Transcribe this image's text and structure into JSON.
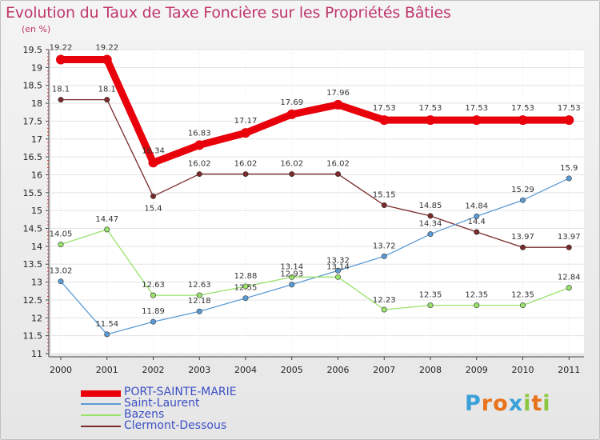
{
  "chart_data": {
    "type": "line",
    "title": "Evolution du Taux de Taxe Foncière sur les Propriétés Bâties",
    "ylabel": "(en %)",
    "xlabel": "",
    "ylim": [
      11,
      19.5
    ],
    "yticks": [
      "11",
      "11.5",
      "12",
      "12.5",
      "13",
      "13.5",
      "14",
      "14.5",
      "15",
      "15.5",
      "16",
      "16.5",
      "17",
      "17.5",
      "18",
      "18.5",
      "19",
      "19.5"
    ],
    "categories": [
      "2000",
      "2001",
      "2002",
      "2003",
      "2004",
      "2005",
      "2006",
      "2007",
      "2008",
      "2009",
      "2010",
      "2011"
    ],
    "series": [
      {
        "name": "PORT-SAINTE-MARIE",
        "color": "#e8000b",
        "values": [
          19.22,
          19.22,
          16.34,
          16.83,
          17.17,
          17.69,
          17.96,
          17.53,
          17.53,
          17.53,
          17.53,
          17.53
        ],
        "labels": [
          "19.22",
          "19.22",
          "16.34",
          "16.83",
          "17.17",
          "17.69",
          "17.96",
          "17.53",
          "17.53",
          "17.53",
          "17.53",
          "17.53"
        ]
      },
      {
        "name": "Saint-Laurent",
        "color": "#5b9bd5",
        "values": [
          13.02,
          11.54,
          11.89,
          12.18,
          12.55,
          12.93,
          13.32,
          13.72,
          14.34,
          14.84,
          15.29,
          15.9
        ],
        "labels": [
          "13.02",
          "11.54",
          "11.89",
          "12.18",
          "12.55",
          "12.93",
          "13.32",
          "13.72",
          "14.34",
          "14.84",
          "15.29",
          "15.9"
        ]
      },
      {
        "name": "Bazens",
        "color": "#99e26b",
        "values": [
          14.05,
          14.47,
          12.63,
          12.63,
          12.88,
          13.14,
          13.14,
          12.23,
          12.35,
          12.35,
          12.35,
          12.84
        ],
        "labels": [
          "14.05",
          "14.47",
          "12.63",
          "12.63",
          "12.88",
          "13.14",
          "13.14",
          "12.23",
          "12.35",
          "12.35",
          "12.35",
          "12.84"
        ]
      },
      {
        "name": "Clermont-Dessous",
        "color": "#7a2a2a",
        "values": [
          18.1,
          18.1,
          15.4,
          16.02,
          16.02,
          16.02,
          16.02,
          15.15,
          14.85,
          14.4,
          13.97,
          13.97
        ],
        "labels": [
          "18.1",
          "18.1",
          "15.4",
          "16.02",
          "16.02",
          "16.02",
          "16.02",
          "15.15",
          "14.85",
          "14.4",
          "13.97",
          "13.97"
        ]
      }
    ]
  },
  "logo": {
    "letters": [
      "P",
      "r",
      "o",
      "x",
      "i",
      "t",
      "i"
    ],
    "colors": [
      "#3aa0d8",
      "#e8731a",
      "#e8731a",
      "#3aa0d8",
      "#8cc63f",
      "#e8731a",
      "#8cc63f"
    ]
  }
}
